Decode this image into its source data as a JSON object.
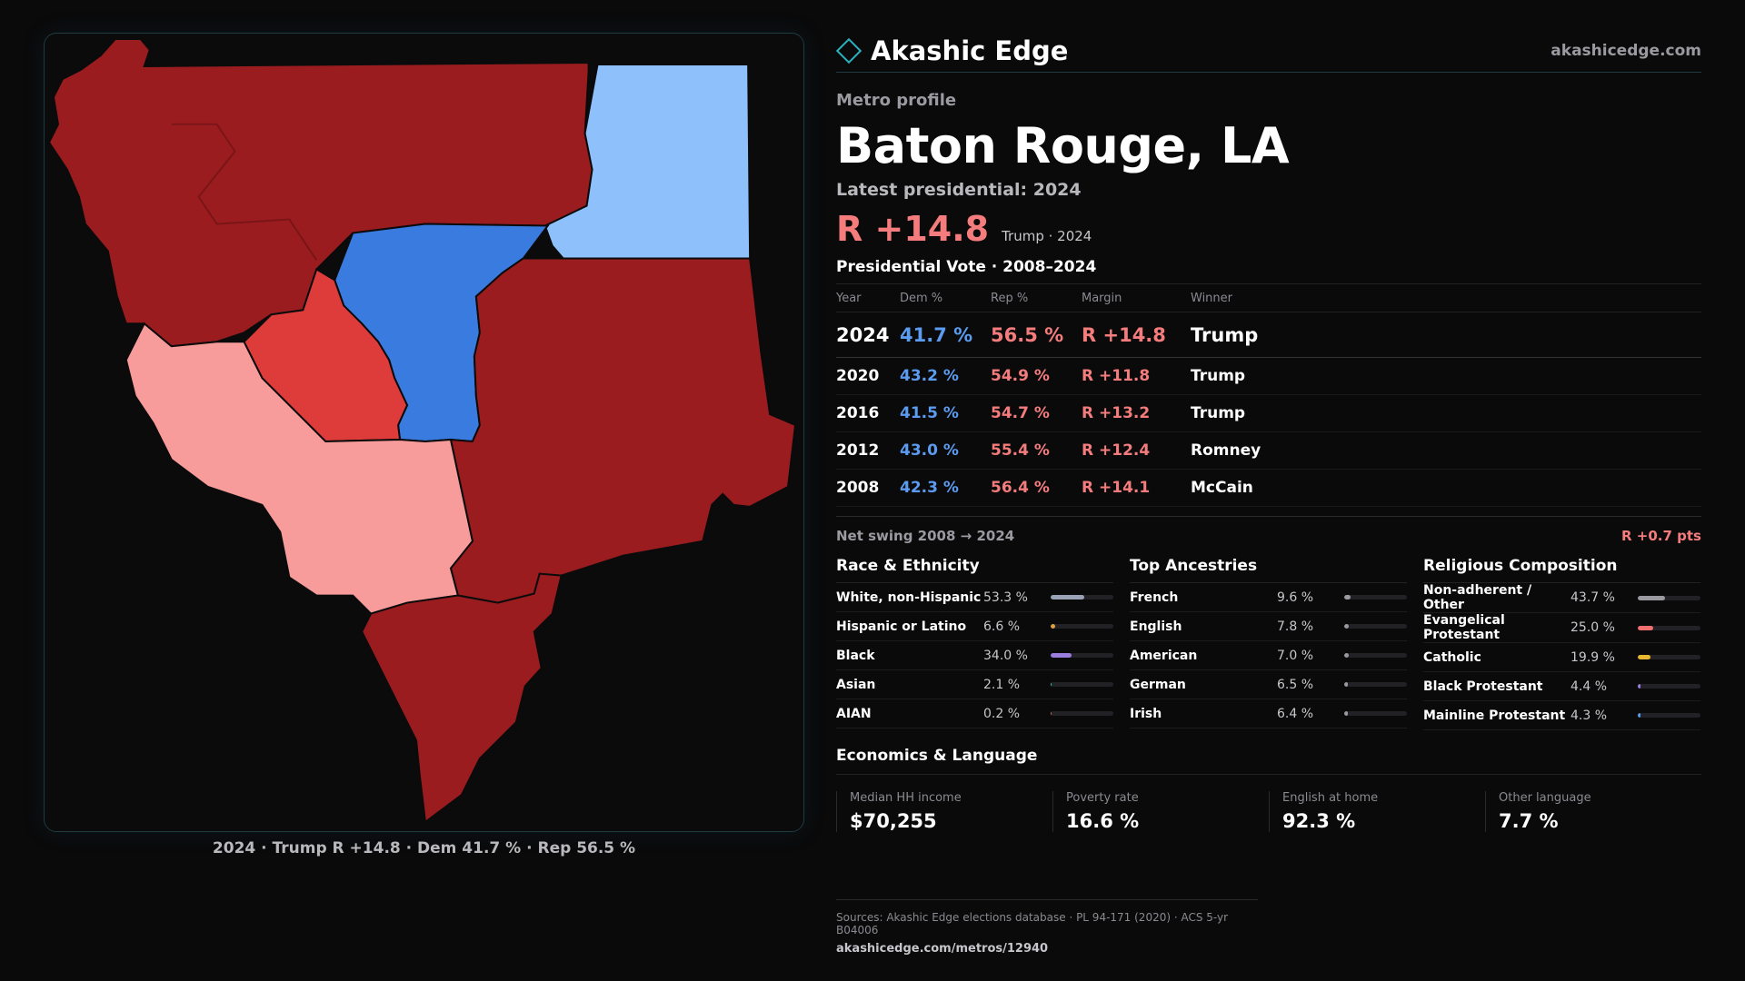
{
  "brand": {
    "name": "Akashic Edge",
    "url": "akashicedge.com"
  },
  "eyebrow": "Metro profile",
  "title": "Baton Rouge, LA",
  "latest_label": "Latest presidential: 2024",
  "margin": {
    "value": "R +14.8",
    "sub": "Trump · 2024"
  },
  "vote": {
    "section_title": "Presidential Vote · 2008–2024",
    "headers": [
      "Year",
      "Dem %",
      "Rep %",
      "Margin",
      "Winner"
    ],
    "rows": [
      {
        "year": "2024",
        "dem": "41.7 %",
        "rep": "56.5 %",
        "margin": "R +14.8",
        "winner": "Trump"
      },
      {
        "year": "2020",
        "dem": "43.2 %",
        "rep": "54.9 %",
        "margin": "R +11.8",
        "winner": "Trump"
      },
      {
        "year": "2016",
        "dem": "41.5 %",
        "rep": "54.7 %",
        "margin": "R +13.2",
        "winner": "Trump"
      },
      {
        "year": "2012",
        "dem": "43.0 %",
        "rep": "55.4 %",
        "margin": "R +12.4",
        "winner": "Romney"
      },
      {
        "year": "2008",
        "dem": "42.3 %",
        "rep": "56.4 %",
        "margin": "R +14.1",
        "winner": "McCain"
      }
    ]
  },
  "swing": {
    "label": "Net swing 2008 → 2024",
    "value": "R +0.7 pts"
  },
  "race": {
    "title": "Race & Ethnicity",
    "items": [
      {
        "name": "White, non-Hispanic",
        "value": "53.3 %",
        "pct": 53.3,
        "color": "#9aa3b5"
      },
      {
        "name": "Hispanic or Latino",
        "value": "6.6 %",
        "pct": 6.6,
        "color": "#e0a040"
      },
      {
        "name": "Black",
        "value": "34.0 %",
        "pct": 34.0,
        "color": "#9b7de0"
      },
      {
        "name": "Asian",
        "value": "2.1 %",
        "pct": 2.1,
        "color": "#40c4a0"
      },
      {
        "name": "AIAN",
        "value": "0.2 %",
        "pct": 0.2,
        "color": "#c07050"
      }
    ]
  },
  "ancestry": {
    "title": "Top Ancestries",
    "items": [
      {
        "name": "French",
        "value": "9.6 %",
        "pct": 9.6,
        "color": "#9a9aa0"
      },
      {
        "name": "English",
        "value": "7.8 %",
        "pct": 7.8,
        "color": "#9a9aa0"
      },
      {
        "name": "American",
        "value": "7.0 %",
        "pct": 7.0,
        "color": "#9a9aa0"
      },
      {
        "name": "German",
        "value": "6.5 %",
        "pct": 6.5,
        "color": "#9a9aa0"
      },
      {
        "name": "Irish",
        "value": "6.4 %",
        "pct": 6.4,
        "color": "#9a9aa0"
      }
    ]
  },
  "religion": {
    "title": "Religious Composition",
    "items": [
      {
        "name": "Non-adherent / Other",
        "value": "43.7 %",
        "pct": 43.7,
        "color": "#9a9aa0"
      },
      {
        "name": "Evangelical Protestant",
        "value": "25.0 %",
        "pct": 25.0,
        "color": "#f07070"
      },
      {
        "name": "Catholic",
        "value": "19.9 %",
        "pct": 19.9,
        "color": "#e8b830"
      },
      {
        "name": "Black Protestant",
        "value": "4.4 %",
        "pct": 4.4,
        "color": "#9b7de0"
      },
      {
        "name": "Mainline Protestant",
        "value": "4.3 %",
        "pct": 4.3,
        "color": "#5b9bf0"
      }
    ]
  },
  "economics": {
    "title": "Economics & Language",
    "items": [
      {
        "label": "Median HH income",
        "value": "$70,255"
      },
      {
        "label": "Poverty rate",
        "value": "16.6 %"
      },
      {
        "label": "English at home",
        "value": "92.3 %"
      },
      {
        "label": "Other language",
        "value": "7.7 %"
      }
    ]
  },
  "footer": {
    "sources": "Sources: Akashic Edge elections database · PL 94-171 (2020) · ACS 5-yr B04006",
    "link": "akashicedge.com/metros/12940"
  },
  "map": {
    "caption": "2024 · Trump R +14.8 · Dem 41.7 % · Rep 56.5 %",
    "colors": {
      "strong_rep": "#9b1c1f",
      "mid_rep": "#de3b3b",
      "light_rep": "#f79c9a",
      "strong_dem": "#3a7be0",
      "light_dem": "#8ec1fc"
    }
  }
}
